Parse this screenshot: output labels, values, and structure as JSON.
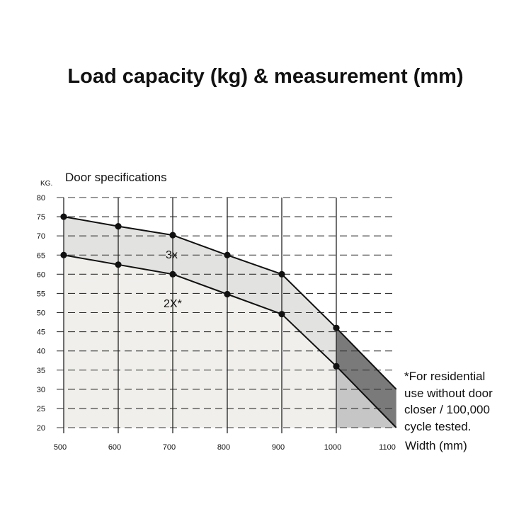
{
  "chart_data": {
    "type": "line",
    "title": "Load capacity (kg) & measurement (mm)",
    "subtitle": "Door specifications",
    "ylabel": "KG.",
    "xlabel": "Width (mm)",
    "x_ticks": [
      500,
      600,
      700,
      800,
      900,
      1000,
      1100
    ],
    "y_ticks": [
      20,
      25,
      30,
      35,
      40,
      45,
      50,
      55,
      60,
      65,
      70,
      75,
      80
    ],
    "xlim": [
      500,
      1100
    ],
    "ylim": [
      20,
      80
    ],
    "grid": true,
    "series": [
      {
        "name": "3x",
        "points": [
          [
            500,
            75
          ],
          [
            600,
            72.5
          ],
          [
            700,
            70.2
          ],
          [
            800,
            65
          ],
          [
            900,
            60
          ],
          [
            1000,
            46
          ],
          [
            1110,
            30
          ]
        ],
        "marked": [
          500,
          600,
          700,
          800,
          900,
          1000
        ]
      },
      {
        "name": "2X*",
        "points": [
          [
            500,
            65
          ],
          [
            600,
            62.5
          ],
          [
            700,
            60
          ],
          [
            800,
            54.8
          ],
          [
            900,
            49.6
          ],
          [
            1000,
            36
          ],
          [
            1110,
            20
          ]
        ],
        "marked": [
          500,
          600,
          700,
          800,
          900,
          1000
        ]
      }
    ],
    "footnote": [
      "*For residential",
      "use without door",
      "closer / 100,000",
      "cycle tested."
    ],
    "colors": {
      "below_2x": "#f0efec",
      "band": "#e2e2e0",
      "band_beyond_1000": "#7a7a7a",
      "below_2x_beyond_1000": "#c6c6c6",
      "line": "#111111"
    }
  }
}
